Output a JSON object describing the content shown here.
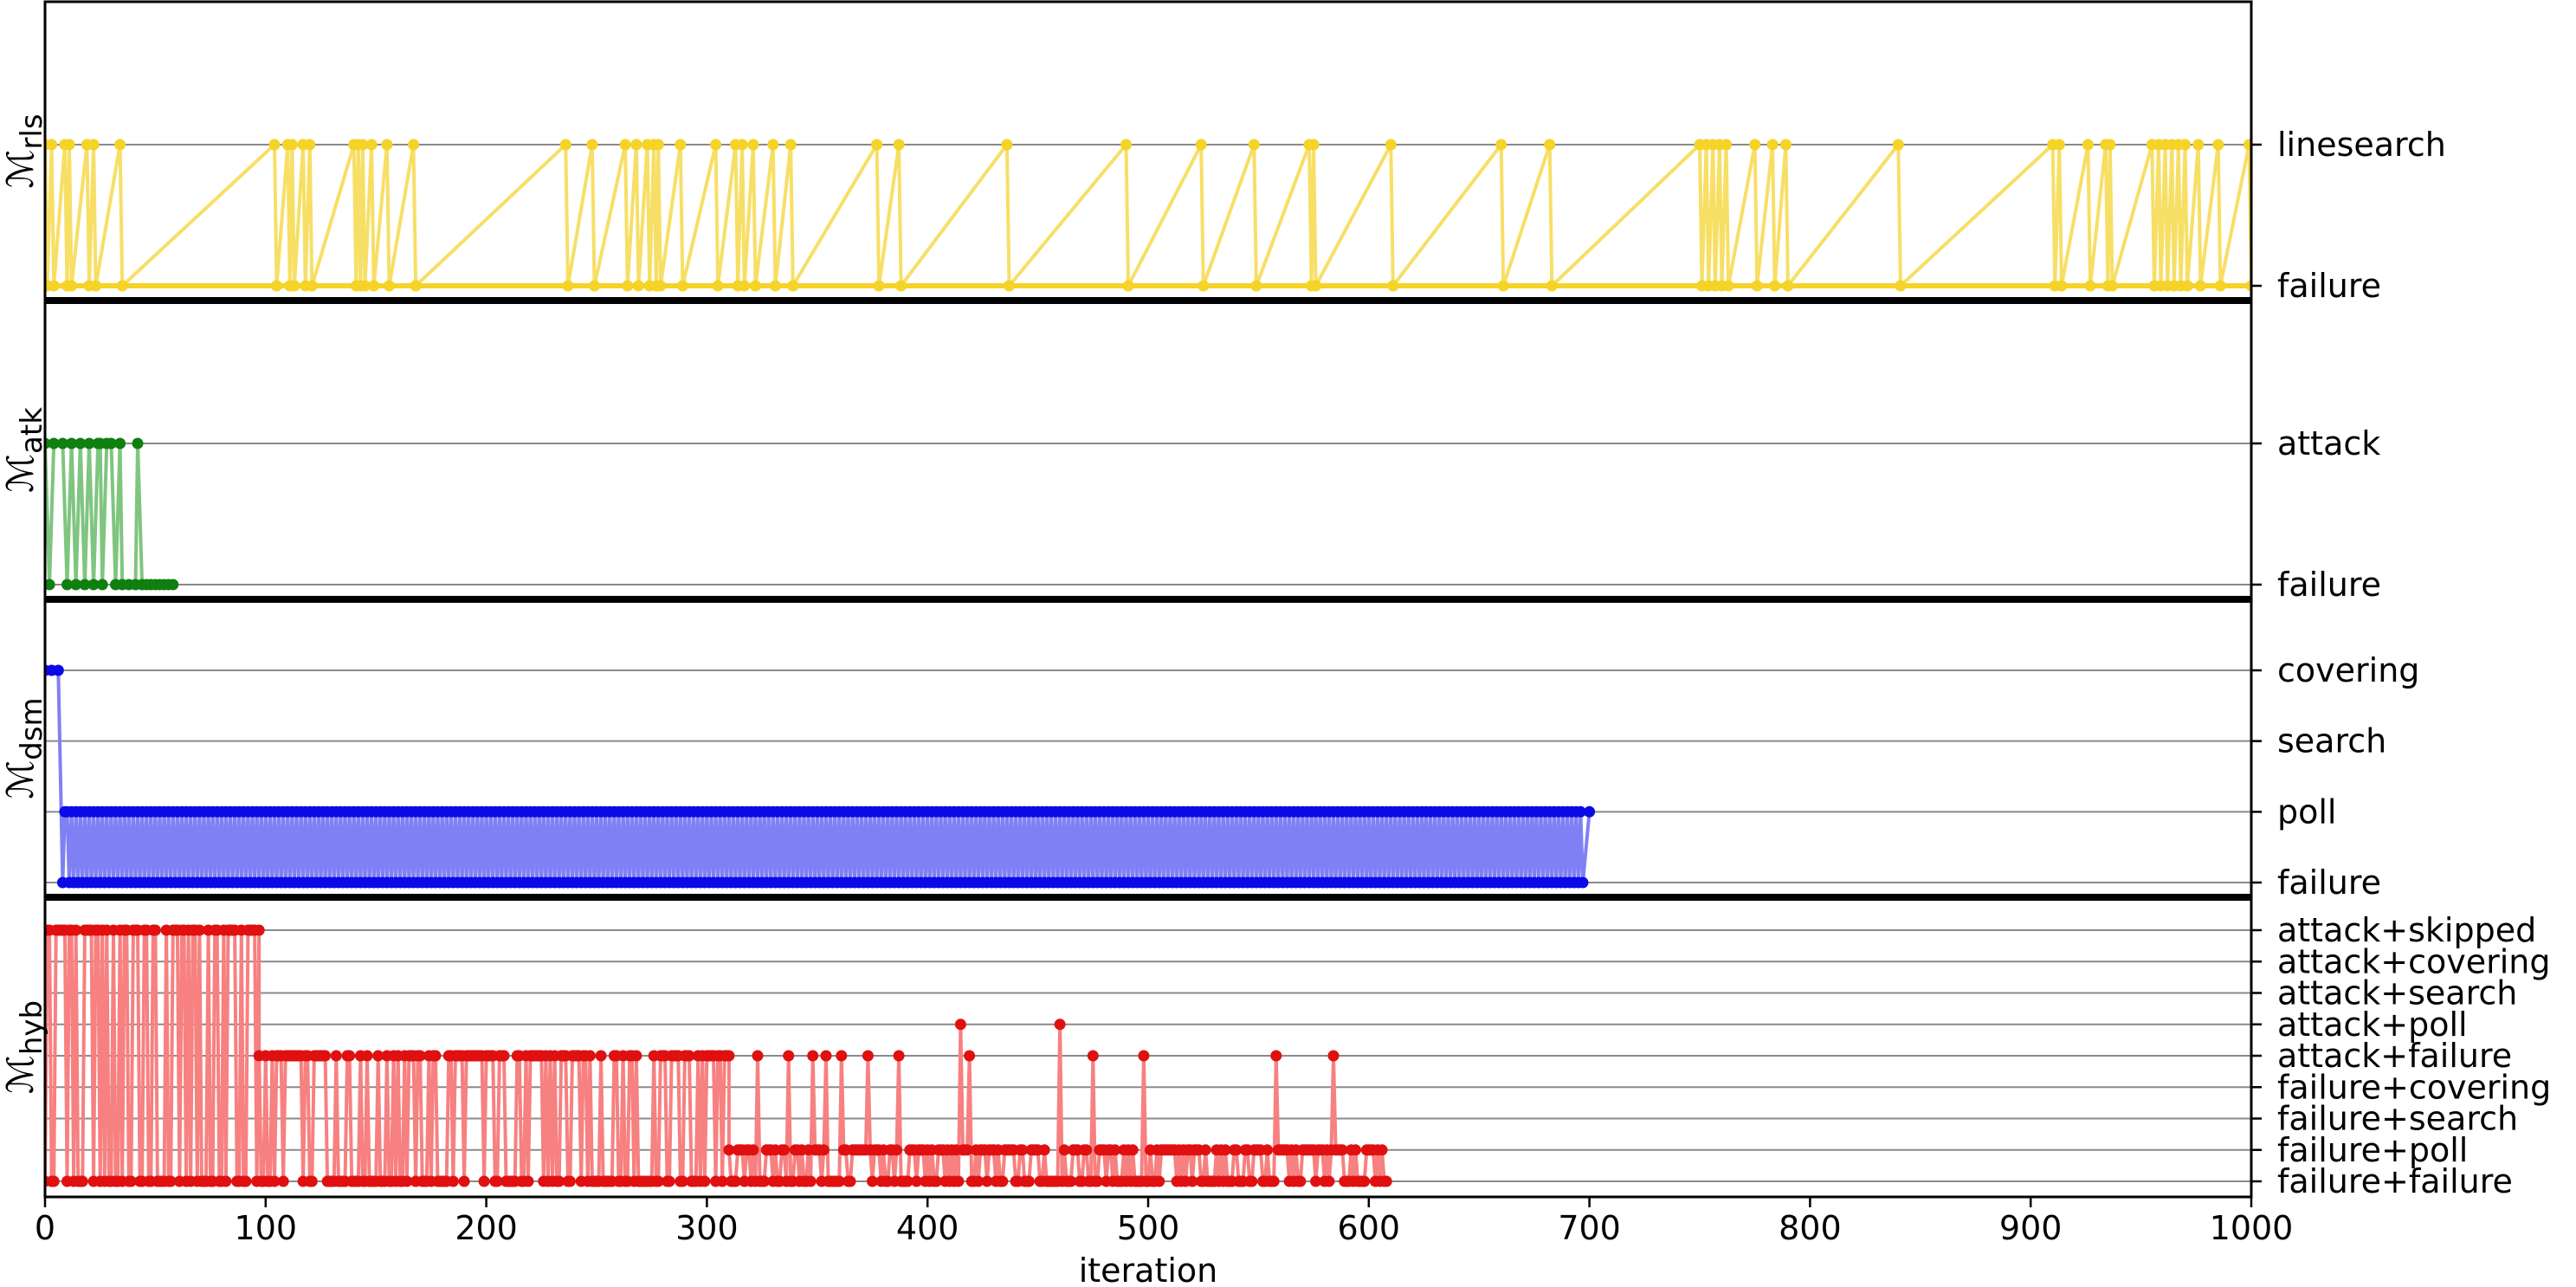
{
  "chart_data": {
    "type": "line",
    "xlabel": "iteration",
    "xlim": [
      0,
      1000
    ],
    "xticks": [
      "0",
      "100",
      "200",
      "300",
      "400",
      "500",
      "600",
      "700",
      "800",
      "900",
      "1000"
    ],
    "panels": [
      {
        "ylabel_main": "ℳ",
        "ylabel_sub": "rls",
        "color": "#f5d327",
        "line_color": "#f7df66",
        "levels": [
          "failure",
          "linesearch"
        ],
        "points": [
          [
            0,
            1
          ],
          [
            1,
            0
          ],
          [
            3,
            1
          ],
          [
            4,
            0
          ],
          [
            9,
            1
          ],
          [
            10,
            0
          ],
          [
            11,
            1
          ],
          [
            12,
            0
          ],
          [
            19,
            1
          ],
          [
            20,
            0
          ],
          [
            22,
            1
          ],
          [
            23,
            0
          ],
          [
            34,
            1
          ],
          [
            35,
            0
          ],
          [
            104,
            1
          ],
          [
            105,
            0
          ],
          [
            110,
            1
          ],
          [
            111,
            0
          ],
          [
            112,
            1
          ],
          [
            113,
            0
          ],
          [
            117,
            1
          ],
          [
            118,
            0
          ],
          [
            120,
            1
          ],
          [
            121,
            0
          ],
          [
            140,
            1
          ],
          [
            141,
            0
          ],
          [
            142,
            1
          ],
          [
            143,
            0
          ],
          [
            144,
            1
          ],
          [
            145,
            0
          ],
          [
            148,
            1
          ],
          [
            149,
            0
          ],
          [
            155,
            1
          ],
          [
            156,
            0
          ],
          [
            167,
            1
          ],
          [
            168,
            0
          ],
          [
            236,
            1
          ],
          [
            237,
            0
          ],
          [
            248,
            1
          ],
          [
            249,
            0
          ],
          [
            263,
            1
          ],
          [
            264,
            0
          ],
          [
            268,
            1
          ],
          [
            269,
            0
          ],
          [
            273,
            1
          ],
          [
            274,
            0
          ],
          [
            276,
            1
          ],
          [
            277,
            0
          ],
          [
            278,
            1
          ],
          [
            279,
            0
          ],
          [
            288,
            1
          ],
          [
            289,
            0
          ],
          [
            304,
            1
          ],
          [
            305,
            0
          ],
          [
            313,
            1
          ],
          [
            314,
            0
          ],
          [
            316,
            1
          ],
          [
            317,
            0
          ],
          [
            321,
            1
          ],
          [
            322,
            0
          ],
          [
            330,
            1
          ],
          [
            331,
            0
          ],
          [
            338,
            1
          ],
          [
            339,
            0
          ],
          [
            377,
            1
          ],
          [
            378,
            0
          ],
          [
            387,
            1
          ],
          [
            388,
            0
          ],
          [
            436,
            1
          ],
          [
            437,
            0
          ],
          [
            490,
            1
          ],
          [
            491,
            0
          ],
          [
            524,
            1
          ],
          [
            525,
            0
          ],
          [
            548,
            1
          ],
          [
            549,
            0
          ],
          [
            573,
            1
          ],
          [
            574,
            0
          ],
          [
            575,
            1
          ],
          [
            576,
            0
          ],
          [
            610,
            1
          ],
          [
            611,
            0
          ],
          [
            660,
            1
          ],
          [
            661,
            0
          ],
          [
            682,
            1
          ],
          [
            683,
            0
          ],
          [
            750,
            1
          ],
          [
            751,
            0
          ],
          [
            753,
            1
          ],
          [
            754,
            0
          ],
          [
            756,
            1
          ],
          [
            757,
            0
          ],
          [
            759,
            1
          ],
          [
            760,
            0
          ],
          [
            762,
            1
          ],
          [
            763,
            0
          ],
          [
            775,
            1
          ],
          [
            776,
            0
          ],
          [
            783,
            1
          ],
          [
            784,
            0
          ],
          [
            789,
            1
          ],
          [
            790,
            0
          ],
          [
            840,
            1
          ],
          [
            841,
            0
          ],
          [
            910,
            1
          ],
          [
            911,
            0
          ],
          [
            913,
            1
          ],
          [
            914,
            0
          ],
          [
            926,
            1
          ],
          [
            927,
            0
          ],
          [
            934,
            1
          ],
          [
            935,
            0
          ],
          [
            936,
            1
          ],
          [
            937,
            0
          ],
          [
            955,
            1
          ],
          [
            956,
            0
          ],
          [
            958,
            1
          ],
          [
            959,
            0
          ],
          [
            961,
            1
          ],
          [
            962,
            0
          ],
          [
            964,
            1
          ],
          [
            965,
            0
          ],
          [
            967,
            1
          ],
          [
            968,
            0
          ],
          [
            970,
            1
          ],
          [
            971,
            0
          ],
          [
            976,
            1
          ],
          [
            977,
            0
          ],
          [
            985,
            1
          ],
          [
            986,
            0
          ],
          [
            999,
            1
          ],
          [
            1000,
            0
          ]
        ]
      },
      {
        "ylabel_main": "ℳ",
        "ylabel_sub": "atk",
        "color": "#0f7f0f",
        "line_color": "#7fc57f",
        "levels": [
          "failure",
          "attack"
        ],
        "points": [
          [
            0,
            1
          ],
          [
            2,
            0
          ],
          [
            4,
            1
          ],
          [
            8,
            1
          ],
          [
            10,
            0
          ],
          [
            12,
            1
          ],
          [
            14,
            0
          ],
          [
            16,
            1
          ],
          [
            18,
            0
          ],
          [
            20,
            1
          ],
          [
            22,
            0
          ],
          [
            24,
            1
          ],
          [
            25,
            1
          ],
          [
            26,
            0
          ],
          [
            28,
            1
          ],
          [
            30,
            1
          ],
          [
            32,
            0
          ],
          [
            34,
            1
          ],
          [
            35,
            0
          ],
          [
            38,
            0
          ],
          [
            41,
            0
          ],
          [
            42,
            1
          ],
          [
            44,
            0
          ],
          [
            46,
            0
          ],
          [
            48,
            0
          ],
          [
            50,
            0
          ],
          [
            52,
            0
          ],
          [
            54,
            0
          ],
          [
            56,
            0
          ],
          [
            58,
            0
          ]
        ]
      },
      {
        "ylabel_main": "ℳ",
        "ylabel_sub": "dsm",
        "color": "#0a0ae6",
        "line_color": "#8080f5",
        "levels": [
          "failure",
          "poll",
          "search",
          "covering"
        ],
        "points": [
          [
            0,
            3
          ],
          [
            3,
            3
          ],
          [
            6,
            3
          ],
          [
            8,
            0
          ],
          [
            9,
            1
          ],
          [
            700,
            1
          ]
        ],
        "alternating_range": [
          10,
          697
        ]
      },
      {
        "ylabel_main": "ℳ",
        "ylabel_sub": "hyb",
        "color": "#e01010",
        "line_color": "#f78080",
        "levels": [
          "failure+failure",
          "failure+poll",
          "failure+search",
          "failure+covering",
          "attack+failure",
          "attack+poll",
          "attack+search",
          "attack+covering",
          "attack+skipped"
        ],
        "segments": [
          {
            "from": 0,
            "to": 97,
            "high": 8,
            "low": 0
          },
          {
            "from": 97,
            "to": 310,
            "high": 4,
            "low": 0
          },
          {
            "from": 310,
            "to": 608,
            "high": 1,
            "low": 0
          }
        ],
        "spikes": [
          [
            323,
            4
          ],
          [
            337,
            4
          ],
          [
            348,
            4
          ],
          [
            354,
            4
          ],
          [
            361,
            4
          ],
          [
            373,
            4
          ],
          [
            387,
            4
          ],
          [
            415,
            5
          ],
          [
            419,
            4
          ],
          [
            460,
            5
          ],
          [
            475,
            4
          ],
          [
            498,
            4
          ],
          [
            558,
            4
          ],
          [
            584,
            4
          ]
        ]
      }
    ]
  }
}
